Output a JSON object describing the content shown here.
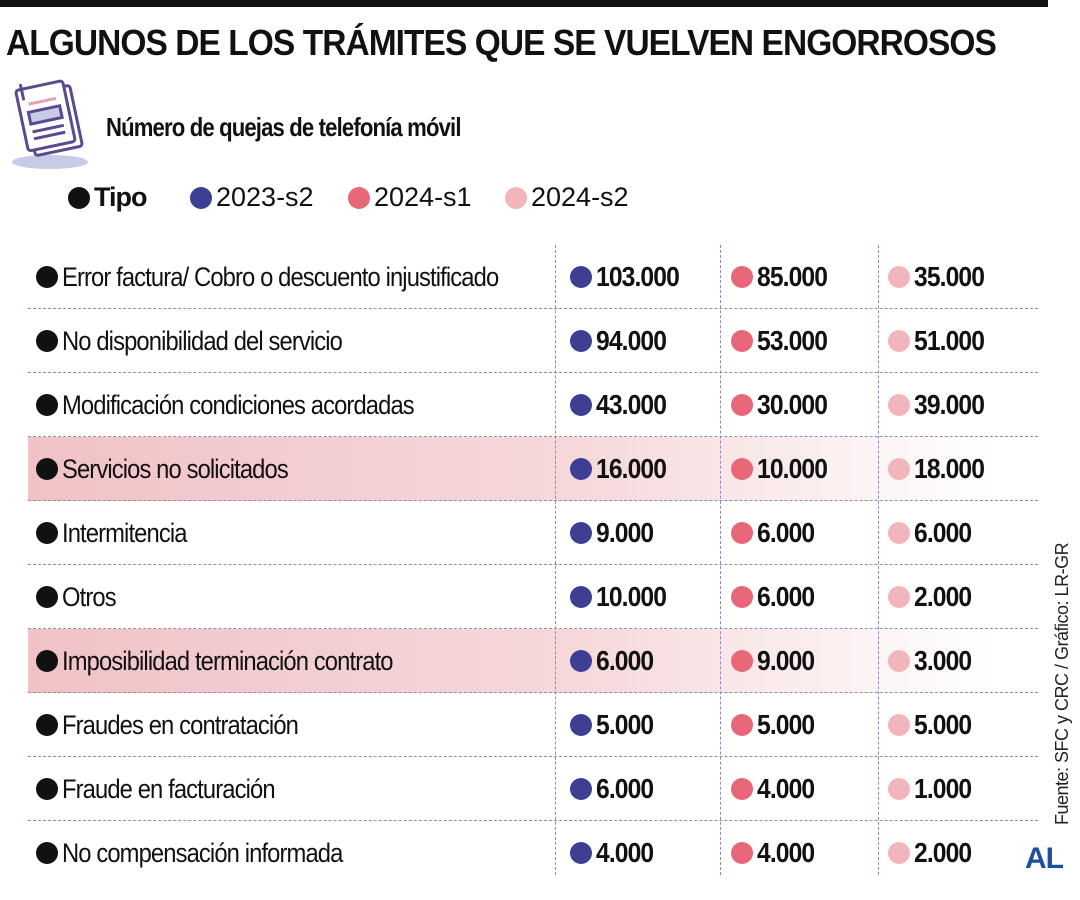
{
  "title": "ALGUNOS DE LOS TRÁMITES QUE SE VUELVEN ENGORROSOS",
  "subtitle": "Número de quejas de telefonía móvil",
  "source": "Fuente: SFC y CRC / Gráfico: LR-GR",
  "logo": "AL",
  "colors": {
    "2023-s2": "#3d3f94",
    "2024-s1": "#e8687a",
    "2024-s2": "#f1b5bc",
    "tipo": "#111111",
    "highlight": "#f0c2c6"
  },
  "chart_data": {
    "type": "table",
    "title": "Número de quejas de telefonía móvil",
    "columns": [
      "Tipo",
      "2023-s2",
      "2024-s1",
      "2024-s2"
    ],
    "rows": [
      {
        "tipo": "Error factura/ Cobro o descuento injustificado",
        "values": [
          "103.000",
          "85.000",
          "35.000"
        ],
        "highlight": false
      },
      {
        "tipo": "No disponibilidad del servicio",
        "values": [
          "94.000",
          "53.000",
          "51.000"
        ],
        "highlight": false
      },
      {
        "tipo": "Modificación condiciones acordadas",
        "values": [
          "43.000",
          "30.000",
          "39.000"
        ],
        "highlight": false
      },
      {
        "tipo": "Servicios no solicitados",
        "values": [
          "16.000",
          "10.000",
          "18.000"
        ],
        "highlight": true
      },
      {
        "tipo": "Intermitencia",
        "values": [
          "9.000",
          "6.000",
          "6.000"
        ],
        "highlight": false
      },
      {
        "tipo": "Otros",
        "values": [
          "10.000",
          "6.000",
          "2.000"
        ],
        "highlight": false
      },
      {
        "tipo": "Imposibilidad terminación contrato",
        "values": [
          "6.000",
          "9.000",
          "3.000"
        ],
        "highlight": true
      },
      {
        "tipo": "Fraudes en contratación",
        "values": [
          "5.000",
          "5.000",
          "5.000"
        ],
        "highlight": false
      },
      {
        "tipo": "Fraude en facturación",
        "values": [
          "6.000",
          "4.000",
          "1.000"
        ],
        "highlight": false
      },
      {
        "tipo": "No compensación informada",
        "values": [
          "4.000",
          "4.000",
          "2.000"
        ],
        "highlight": false
      }
    ]
  }
}
